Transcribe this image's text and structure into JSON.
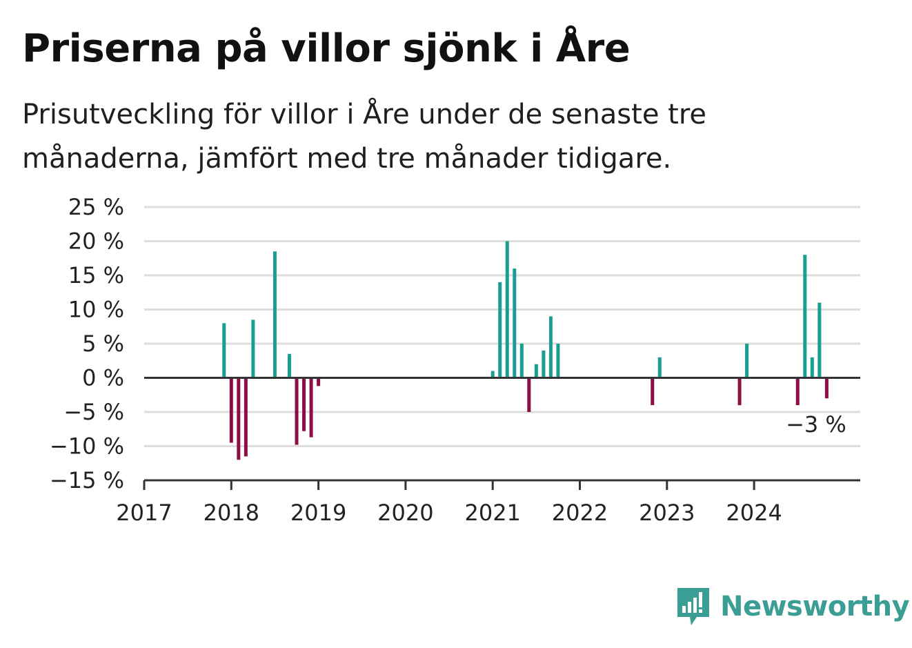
{
  "title": "Priserna på villor sjönk i Åre",
  "subtitle": "Prisutveckling för villor i Åre under de senaste tre månaderna, jämfört med tre månader tidigare.",
  "brand": {
    "name": "Newsworthy",
    "icon": "newsworthy-logo-icon",
    "color": "#3a9e94"
  },
  "colors": {
    "positive": "#199e91",
    "negative": "#8c0e44",
    "grid": "#dddddd",
    "axis": "#333333"
  },
  "chart_data": {
    "type": "bar",
    "x_unit": "date",
    "y_unit": "%",
    "ylim": [
      -15,
      25
    ],
    "yticks": [
      25,
      20,
      15,
      10,
      5,
      0,
      -5,
      -10,
      -15
    ],
    "ytick_labels": [
      "25 %",
      "20 %",
      "15 %",
      "10 %",
      "5 %",
      "0 %",
      "−5 %",
      "−10 %",
      "−15 %"
    ],
    "xticks": [
      "2017",
      "2018",
      "2019",
      "2020",
      "2021",
      "2022",
      "2023",
      "2024"
    ],
    "grid": true,
    "annotation": {
      "text": "−3 %",
      "date": "2024-10"
    },
    "points": [
      {
        "date": "2017-12",
        "value": 8
      },
      {
        "date": "2018-01",
        "value": -9.5
      },
      {
        "date": "2018-02",
        "value": -12
      },
      {
        "date": "2018-03",
        "value": -11.5
      },
      {
        "date": "2018-04",
        "value": 8.5
      },
      {
        "date": "2018-07",
        "value": 18.5
      },
      {
        "date": "2018-09",
        "value": 3.5
      },
      {
        "date": "2018-10",
        "value": -9.8
      },
      {
        "date": "2018-11",
        "value": -7.8
      },
      {
        "date": "2018-12",
        "value": -8.7
      },
      {
        "date": "2019-01",
        "value": -1.2
      },
      {
        "date": "2021-01",
        "value": 1
      },
      {
        "date": "2021-02",
        "value": 14
      },
      {
        "date": "2021-03",
        "value": 20
      },
      {
        "date": "2021-04",
        "value": 16
      },
      {
        "date": "2021-05",
        "value": 5
      },
      {
        "date": "2021-06",
        "value": -5
      },
      {
        "date": "2021-07",
        "value": 2
      },
      {
        "date": "2021-08",
        "value": 4
      },
      {
        "date": "2021-09",
        "value": 9
      },
      {
        "date": "2021-10",
        "value": 5
      },
      {
        "date": "2022-11",
        "value": -4
      },
      {
        "date": "2022-12",
        "value": 3
      },
      {
        "date": "2023-11",
        "value": -4
      },
      {
        "date": "2023-12",
        "value": 5
      },
      {
        "date": "2024-07",
        "value": -4
      },
      {
        "date": "2024-08",
        "value": 18
      },
      {
        "date": "2024-09",
        "value": 3
      },
      {
        "date": "2024-10",
        "value": 11
      },
      {
        "date": "2024-11",
        "value": -3
      }
    ]
  }
}
